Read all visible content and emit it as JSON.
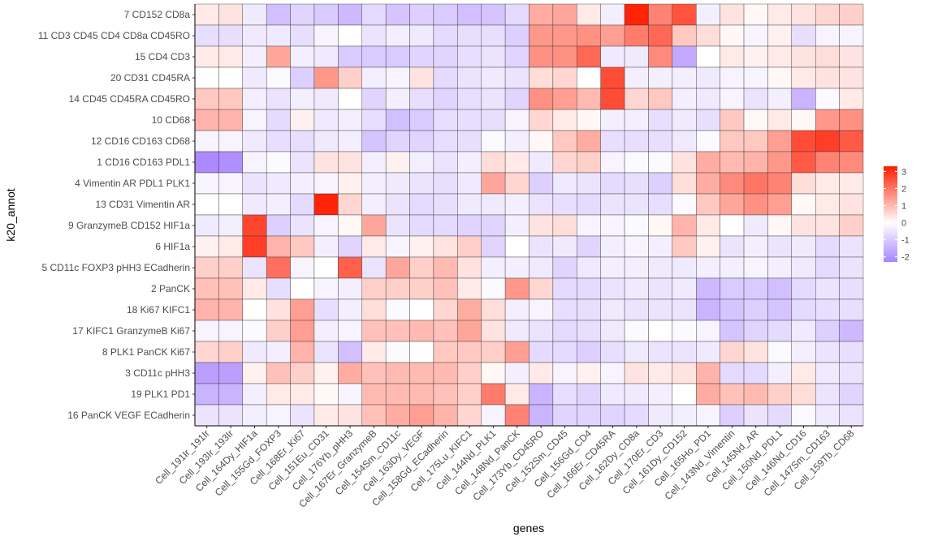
{
  "chart_data": {
    "type": "heatmap",
    "xlabel": "genes",
    "ylabel": "k20_annot",
    "x_categories": [
      "Cell_191Ir_191Ir",
      "Cell_193Ir_193Ir",
      "Cell_164Dy_HIF1a",
      "Cell_155Gd_FOXP3",
      "Cell_168Er_Ki67",
      "Cell_151Eu_CD31",
      "Cell_176Yb_pHH3",
      "Cell_167Er_GranzymeB",
      "Cell_154Sm_CD11c",
      "Cell_163Dy_VEGF",
      "Cell_158Gd_ECadherin",
      "Cell_175Lu_KIFC1",
      "Cell_144Nd_PLK1",
      "Cell_148Nd_PanCK",
      "Cell_173Yb_CD45RO",
      "Cell_152Sm_CD45",
      "Cell_156Gd_CD4",
      "Cell_166Er_CD45RA",
      "Cell_162Dy_CD8a",
      "Cell_170Er_CD3",
      "Cell_161Dy_CD152",
      "Cell_165Ho_PD1",
      "Cell_143Nd_Vimentin",
      "Cell_145Nd_AR",
      "Cell_150Nd_PDL1",
      "Cell_146Nd_CD16",
      "Cell_147Sm_CD163",
      "Cell_159Tb_CD68"
    ],
    "y_categories": [
      "7 CD152 CD8a",
      "11 CD3 CD45 CD4 CD8a CD45RO",
      "15 CD4 CD3",
      "20 CD31 CD45RA",
      "14 CD45 CD45RA CD45RO",
      "10 CD68",
      "12 CD16 CD163 CD68",
      "1 CD16 CD163 PDL1",
      "4 Vimentin AR PDL1 PLK1",
      "13 CD31 Vimentin AR",
      "9 GranzymeB CD152 HIF1a",
      "6 HIF1a",
      "5 CD11c FOXP3 pHH3 ECadherin",
      "2 PanCK",
      "18 Ki67 KIFC1",
      "17 KIFC1 GranzymeB Ki67",
      "8 PLK1 PanCK Ki67",
      "3 CD11c pHH3",
      "19 PLK1 PD1",
      "16 PanCK VEGF ECadherin"
    ],
    "values": [
      [
        0.3,
        0.4,
        -0.4,
        -1.2,
        -0.8,
        -1.0,
        -1.3,
        -0.7,
        -1.1,
        -0.9,
        -1.0,
        -1.2,
        -1.1,
        -0.7,
        1.2,
        1.3,
        0.3,
        -0.3,
        3.2,
        1.8,
        2.5,
        -0.3,
        0.4,
        0.1,
        0.3,
        0.4,
        0.6,
        0.7
      ],
      [
        -0.6,
        -0.6,
        -0.4,
        -0.4,
        -0.6,
        -0.2,
        0.0,
        -0.5,
        -0.3,
        -0.4,
        -0.7,
        -0.6,
        -0.6,
        -0.9,
        1.5,
        1.5,
        1.6,
        1.4,
        1.9,
        2.2,
        0.8,
        0.5,
        0.1,
        -0.2,
        0.2,
        -0.6,
        -0.2,
        -0.2
      ],
      [
        0.3,
        0.3,
        -0.3,
        1.3,
        -0.3,
        -0.4,
        -1.0,
        -1.0,
        -1.0,
        -0.8,
        -0.8,
        -0.6,
        -0.5,
        -0.8,
        1.6,
        1.6,
        2.2,
        -0.4,
        -0.4,
        1.7,
        -1.6,
        0.0,
        0.3,
        0.2,
        0.3,
        0.4,
        0.5,
        0.4
      ],
      [
        0.0,
        0.0,
        -0.4,
        -0.1,
        -0.9,
        1.5,
        0.7,
        -0.3,
        -0.2,
        0.4,
        -0.7,
        -0.5,
        -0.4,
        -0.5,
        0.5,
        0.6,
        0.0,
        2.6,
        -0.3,
        -0.3,
        -0.3,
        -0.4,
        -0.2,
        -0.2,
        0.1,
        0.3,
        0.4,
        0.4
      ],
      [
        0.8,
        0.8,
        -0.3,
        -0.5,
        -0.3,
        -0.4,
        0.0,
        -0.8,
        -0.3,
        -0.6,
        -0.8,
        -0.6,
        -0.5,
        -0.8,
        1.6,
        1.4,
        1.0,
        2.6,
        0.6,
        0.8,
        -0.3,
        -0.4,
        -0.2,
        -0.5,
        -0.3,
        -1.4,
        -0.1,
        0.3
      ],
      [
        1.1,
        1.1,
        -0.2,
        -0.7,
        0.2,
        -0.4,
        -0.3,
        -0.6,
        -1.2,
        -1.0,
        -0.6,
        -0.6,
        -0.6,
        -0.2,
        0.6,
        0.3,
        0.1,
        -0.3,
        -0.3,
        -0.6,
        -0.4,
        -0.6,
        0.8,
        0.1,
        0.3,
        0.1,
        1.5,
        1.6
      ],
      [
        -0.2,
        -0.2,
        -0.4,
        -0.6,
        -0.6,
        -0.4,
        -0.3,
        -1.1,
        -0.8,
        -0.8,
        -0.6,
        -0.6,
        -0.1,
        -0.3,
        0.1,
        0.8,
        1.2,
        -0.6,
        -0.6,
        -0.6,
        -0.4,
        -0.1,
        0.8,
        0.8,
        1.4,
        2.6,
        2.8,
        2.4
      ],
      [
        -2.2,
        -2.1,
        -0.2,
        -0.1,
        -0.5,
        0.4,
        0.4,
        -0.3,
        0.2,
        -0.3,
        -0.5,
        -0.3,
        0.5,
        0.3,
        -0.4,
        0.6,
        0.7,
        -0.2,
        -0.1,
        -0.1,
        0.4,
        1.2,
        1.0,
        1.1,
        1.5,
        2.4,
        1.8,
        1.7
      ],
      [
        -0.2,
        -0.2,
        -0.5,
        -0.4,
        -0.3,
        -0.2,
        0.2,
        -0.3,
        -0.4,
        -0.5,
        -0.6,
        -0.4,
        1.3,
        0.6,
        -0.9,
        -0.4,
        -0.5,
        -0.7,
        -0.6,
        -0.9,
        0.5,
        1.2,
        1.7,
        2.0,
        1.8,
        0.5,
        0.3,
        0.3
      ],
      [
        0.0,
        0.0,
        -0.4,
        -0.3,
        -0.7,
        3.2,
        0.6,
        -0.3,
        -0.5,
        -0.7,
        -0.6,
        -0.4,
        -0.4,
        -0.3,
        -0.5,
        -0.6,
        -0.7,
        -0.5,
        -0.5,
        -0.6,
        -0.1,
        0.8,
        1.3,
        1.6,
        1.4,
        0.1,
        0.3,
        0.4
      ],
      [
        -0.4,
        -0.3,
        2.7,
        -0.9,
        -0.5,
        -0.2,
        0.1,
        1.3,
        -0.5,
        -0.7,
        -0.7,
        -0.8,
        -0.8,
        -0.3,
        0.4,
        0.5,
        -0.2,
        -0.2,
        -0.1,
        0.1,
        1.1,
        0.3,
        0.0,
        -0.4,
        0.1,
        0.4,
        0.4,
        0.7
      ],
      [
        0.2,
        0.3,
        2.8,
        1.1,
        0.8,
        -0.3,
        -0.8,
        0.3,
        -0.2,
        0.2,
        0.4,
        0.7,
        -0.8,
        0.0,
        -0.5,
        -0.4,
        -0.8,
        -0.3,
        -0.2,
        -0.3,
        0.8,
        0.2,
        -0.5,
        -0.3,
        -0.5,
        -0.4,
        -0.7,
        -0.5
      ],
      [
        0.7,
        0.7,
        -0.5,
        2.1,
        -0.2,
        0.0,
        2.3,
        -0.5,
        1.3,
        0.7,
        1.0,
        0.4,
        -0.3,
        -0.3,
        -0.4,
        -0.8,
        -0.4,
        -0.3,
        -0.3,
        -0.4,
        -0.4,
        -0.3,
        -0.3,
        -0.2,
        -0.3,
        -0.4,
        -0.7,
        -0.5
      ],
      [
        0.9,
        0.9,
        0.3,
        -0.6,
        0.0,
        -0.2,
        -0.3,
        0.7,
        0.7,
        0.7,
        0.9,
        0.3,
        -0.1,
        1.5,
        0.6,
        -0.7,
        -0.7,
        -0.5,
        -0.4,
        -0.5,
        -0.4,
        -1.3,
        -1.0,
        -1.0,
        -1.2,
        -0.7,
        -0.5,
        -0.6
      ],
      [
        1.1,
        1.1,
        0.0,
        0.4,
        1.4,
        -0.6,
        -0.3,
        0.5,
        -0.1,
        0.0,
        0.6,
        1.2,
        0.5,
        -0.3,
        -0.2,
        -0.6,
        -0.6,
        -0.4,
        -0.5,
        -0.5,
        -0.5,
        -1.4,
        -1.1,
        -0.9,
        -1.1,
        -0.7,
        -0.6,
        -0.6
      ],
      [
        -0.2,
        -0.2,
        -0.1,
        0.7,
        1.4,
        -0.3,
        -0.2,
        0.9,
        0.9,
        1.0,
        0.9,
        1.3,
        0.4,
        -0.4,
        -0.5,
        -0.7,
        -0.6,
        -0.4,
        -0.1,
        0.0,
        -0.1,
        -0.2,
        -1.1,
        -0.8,
        -0.7,
        -0.4,
        -0.9,
        -1.3
      ],
      [
        0.6,
        0.7,
        -0.4,
        -0.3,
        1.1,
        -0.5,
        -1.2,
        0.3,
        -0.1,
        0.0,
        0.8,
        0.8,
        0.7,
        1.4,
        -0.7,
        -0.7,
        -0.9,
        -0.6,
        -0.4,
        -0.5,
        -0.5,
        -0.4,
        0.6,
        0.4,
        -0.1,
        -0.3,
        -0.5,
        -0.6
      ],
      [
        -1.8,
        -1.8,
        0.2,
        0.9,
        0.7,
        0.2,
        1.2,
        0.9,
        1.0,
        1.0,
        1.0,
        0.7,
        0.1,
        -0.3,
        0.3,
        -0.2,
        0.2,
        -0.2,
        0.4,
        0.3,
        0.4,
        1.1,
        -0.7,
        -0.7,
        -0.3,
        0.3,
        -0.4,
        -0.5
      ],
      [
        -1.4,
        -1.4,
        -0.3,
        0.3,
        0.3,
        0.1,
        -0.2,
        1.0,
        1.0,
        1.0,
        0.9,
        0.7,
        1.9,
        0.3,
        -1.4,
        -0.6,
        -0.8,
        -0.4,
        -0.4,
        -0.3,
        0.0,
        1.2,
        0.9,
        1.0,
        0.7,
        0.5,
        -0.5,
        -0.8
      ],
      [
        -0.5,
        -0.5,
        -0.3,
        -0.2,
        -0.5,
        0.3,
        0.4,
        0.9,
        1.2,
        1.4,
        1.1,
        0.6,
        -0.2,
        1.8,
        -1.4,
        -0.8,
        -0.8,
        -0.8,
        -0.7,
        -0.4,
        -0.3,
        -0.2,
        -0.9,
        -0.5,
        -0.7,
        -0.1,
        -0.4,
        -0.5
      ]
    ],
    "legend": {
      "ticks": [
        3,
        2,
        1,
        0,
        -1,
        -2
      ],
      "tick_labels": [
        "3",
        "2",
        "1",
        "0",
        "-1",
        "-2"
      ],
      "range": [
        -2.3,
        3.3
      ],
      "placement": "right"
    },
    "colors": {
      "low": "#a884ff",
      "mid": "#ffffff",
      "high": "#ff1c00",
      "gridline": "#333333",
      "text": "#4d4d4d"
    }
  }
}
